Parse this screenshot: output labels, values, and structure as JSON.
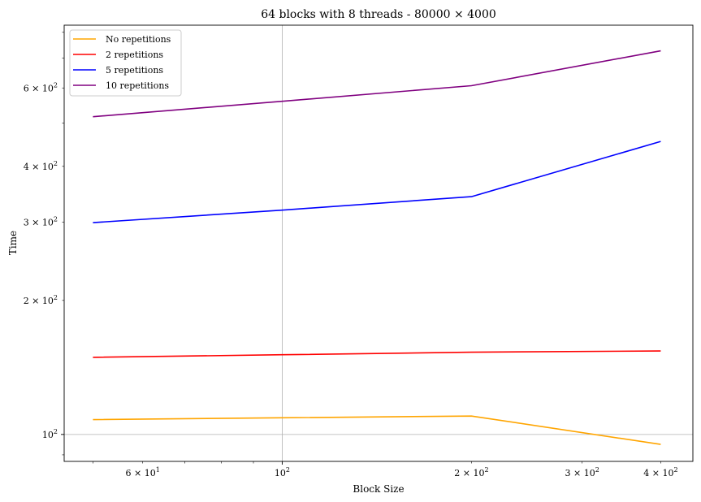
{
  "chart_data": {
    "type": "line",
    "title": "64 blocks with 8 threads - 80000 × 4000",
    "xlabel": "Block Size",
    "ylabel": "Time",
    "xscale": "log",
    "yscale": "log",
    "xlim": [
      45,
      450
    ],
    "ylim": [
      87,
      830
    ],
    "grid": true,
    "legend_position": "top-left",
    "x": [
      50,
      100,
      200,
      400
    ],
    "x_ticks": [
      {
        "value": 60,
        "base": "6",
        "exp": "1"
      },
      {
        "value": 100,
        "base": "",
        "exp": "2"
      },
      {
        "value": 200,
        "base": "2",
        "exp": "2"
      },
      {
        "value": 300,
        "base": "3",
        "exp": "2"
      },
      {
        "value": 400,
        "base": "4",
        "exp": "2"
      }
    ],
    "y_ticks": [
      {
        "value": 100,
        "base": "",
        "exp": "2"
      },
      {
        "value": 200,
        "base": "2",
        "exp": "2"
      },
      {
        "value": 300,
        "base": "3",
        "exp": "2"
      },
      {
        "value": 400,
        "base": "4",
        "exp": "2"
      },
      {
        "value": 600,
        "base": "6",
        "exp": "2"
      }
    ],
    "series": [
      {
        "name": "No repetitions",
        "color": "#FFA500",
        "values": [
          108,
          109,
          110,
          95
        ]
      },
      {
        "name": "2 repetitions",
        "color": "#FF0000",
        "values": [
          149,
          151,
          153,
          154
        ]
      },
      {
        "name": "5 repetitions",
        "color": "#0000FF",
        "values": [
          299,
          319,
          342,
          455
        ]
      },
      {
        "name": "10 repetitions",
        "color": "#800080",
        "values": [
          517,
          560,
          607,
          727
        ]
      }
    ]
  }
}
